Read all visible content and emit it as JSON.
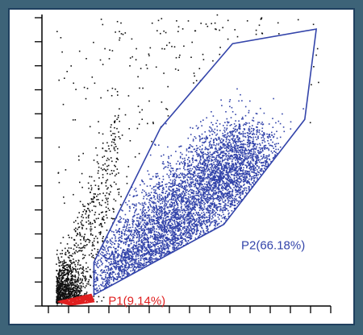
{
  "colors": {
    "background": "#3d6378",
    "panel": "#ffffff",
    "axis": "#000000",
    "ungated": "#111111",
    "p1": "#e02020",
    "p2": "#3344aa"
  },
  "chart_data": {
    "type": "scatter",
    "title": "",
    "xlabel": "",
    "ylabel": "",
    "xlim": [
      0,
      100
    ],
    "ylim": [
      0,
      100
    ],
    "grid": false,
    "legend": "none",
    "x_ticks_count": 15,
    "y_ticks_count": 13,
    "gates": [
      {
        "name": "P1",
        "label": "P1(9.14%)",
        "percent": 9.14,
        "color": "#e02020",
        "polygon": [
          [
            5.5,
            1.5
          ],
          [
            17,
            4.0
          ],
          [
            18,
            1.5
          ],
          [
            10,
            0.3
          ]
        ]
      },
      {
        "name": "P2",
        "label": "P2(66.18%)",
        "percent": 66.18,
        "color": "#3344aa",
        "polygon": [
          [
            18,
            3.8
          ],
          [
            18,
            15
          ],
          [
            41,
            61
          ],
          [
            66,
            90
          ],
          [
            95,
            95
          ],
          [
            91,
            64
          ],
          [
            63,
            28
          ]
        ]
      }
    ],
    "series": [
      {
        "name": "P2",
        "points": 5200
      },
      {
        "name": "P1",
        "points": 380
      },
      {
        "name": "ungated",
        "points": 1300
      }
    ]
  }
}
